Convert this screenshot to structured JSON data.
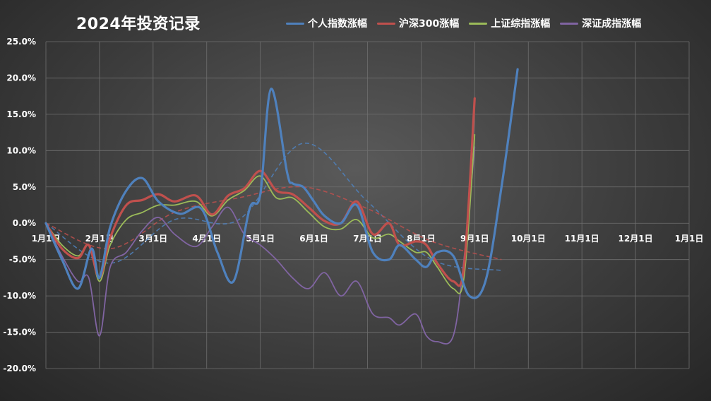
{
  "chart_data": {
    "type": "line",
    "title": "2024年投资记录",
    "y_tick_labels": [
      "25.0%",
      "20.0%",
      "15.0%",
      "10.0%",
      "5.0%",
      "0.0%",
      "-5.0%",
      "-10.0%",
      "-15.0%",
      "-20.0%"
    ],
    "y_tick_values": [
      25,
      20,
      15,
      10,
      5,
      0,
      -5,
      -10,
      -15,
      -20
    ],
    "ylim": [
      -20,
      25
    ],
    "x_tick_labels": [
      "1月1日",
      "2月1日",
      "3月1日",
      "4月1日",
      "5月1日",
      "6月1日",
      "7月1日",
      "8月1日",
      "9月1日",
      "10月1日",
      "11月1日",
      "12月1日",
      "1月1日"
    ],
    "xlim": [
      0,
      12
    ],
    "grid": true,
    "legend_position": "top",
    "series": [
      {
        "name": "个人指数涨幅",
        "color": "#4f81bd",
        "width": 3.2,
        "x": [
          0,
          0.3,
          0.6,
          0.85,
          1.0,
          1.2,
          1.5,
          1.8,
          2.1,
          2.5,
          2.9,
          3.2,
          3.5,
          3.8,
          4.0,
          4.2,
          4.5,
          4.6,
          4.8,
          5.0,
          5.2,
          5.5,
          5.8,
          6.1,
          6.4,
          6.6,
          6.9,
          7.1,
          7.3,
          7.6,
          7.9,
          8.2,
          8.5,
          8.8,
          9.0,
          9.15
        ],
        "y": [
          0,
          -5,
          -9,
          -3.5,
          -7.5,
          -0.5,
          4.5,
          6.2,
          3,
          1.3,
          2,
          -4,
          -8,
          2,
          4,
          18.5,
          7,
          5.5,
          5,
          3,
          1,
          0,
          2.5,
          -4,
          -5,
          -3,
          -5,
          -6,
          -4,
          -4.5,
          -10,
          -8,
          5,
          21.2,
          null,
          null
        ]
      },
      {
        "name": "沪深300涨幅",
        "color": "#c0504d",
        "width": 3.2,
        "x": [
          0,
          0.3,
          0.6,
          0.8,
          1.0,
          1.2,
          1.5,
          1.8,
          2.1,
          2.4,
          2.8,
          3.1,
          3.4,
          3.7,
          4.0,
          4.3,
          4.6,
          4.9,
          5.2,
          5.5,
          5.8,
          6.1,
          6.4,
          6.6,
          6.9,
          7.1,
          7.3,
          7.6,
          7.8,
          8.0,
          8.1,
          8.2
        ],
        "y": [
          0,
          -3.5,
          -4.8,
          -3,
          -7.5,
          -2,
          2.5,
          3.2,
          4,
          3,
          3.8,
          1.2,
          3.8,
          4.8,
          7.2,
          4.5,
          4,
          2.2,
          0.3,
          0,
          3,
          -1.5,
          0,
          -3,
          -2.5,
          -3,
          -5.5,
          -8,
          -6,
          17.2,
          null,
          null
        ]
      },
      {
        "name": "上证综指涨幅",
        "color": "#9bbb59",
        "width": 1.8,
        "x": [
          0,
          0.3,
          0.6,
          0.8,
          1.0,
          1.2,
          1.5,
          1.8,
          2.1,
          2.4,
          2.8,
          3.1,
          3.4,
          3.7,
          4.0,
          4.3,
          4.6,
          4.9,
          5.2,
          5.5,
          5.8,
          6.1,
          6.4,
          6.6,
          6.9,
          7.1,
          7.3,
          7.6,
          7.8,
          8.0
        ],
        "y": [
          0,
          -3,
          -4.5,
          -3,
          -8,
          -3,
          0.5,
          1.5,
          2.5,
          2.5,
          3,
          1,
          3.2,
          4.5,
          6.5,
          3.5,
          3.5,
          1.5,
          -0.5,
          -0.8,
          0.5,
          -2,
          -1.5,
          -2.5,
          -4,
          -4,
          -6,
          -9,
          -7.5,
          12.2
        ]
      },
      {
        "name": "深证成指涨幅",
        "color": "#8064a2",
        "width": 1.8,
        "x": [
          0,
          0.3,
          0.6,
          0.8,
          1.0,
          1.2,
          1.5,
          1.8,
          2.1,
          2.4,
          2.8,
          3.1,
          3.4,
          3.7,
          4.0,
          4.3,
          4.6,
          4.9,
          5.2,
          5.5,
          5.8,
          6.1,
          6.4,
          6.6,
          6.9,
          7.1,
          7.3,
          7.6,
          7.8,
          8.0
        ],
        "y": [
          0,
          -4.5,
          -8,
          -7.5,
          -15.5,
          -6,
          -4,
          -1,
          0.8,
          -1.5,
          -3.2,
          -0.5,
          2.2,
          -1.5,
          -3,
          -5,
          -7.5,
          -9,
          -6.8,
          -10,
          -8,
          -12.5,
          -13,
          -14,
          -12.5,
          -15.5,
          -16.3,
          -15.5,
          -5,
          10.5
        ]
      }
    ],
    "trendlines": [
      {
        "series": "个人指数涨幅",
        "color": "#4f81bd",
        "x": [
          0,
          1.2,
          2.4,
          3.6,
          4.8,
          6.0,
          7.2,
          8.5
        ],
        "y": [
          0,
          -5.5,
          0.5,
          0.5,
          11,
          3,
          -5,
          -6.5
        ]
      },
      {
        "series": "沪深300涨幅",
        "color": "#c0504d",
        "x": [
          0,
          1.2,
          2.4,
          3.6,
          4.8,
          6.0,
          7.2,
          8.5
        ],
        "y": [
          0,
          -3.5,
          1.5,
          3.5,
          5,
          2,
          -2.5,
          -5
        ]
      }
    ]
  }
}
